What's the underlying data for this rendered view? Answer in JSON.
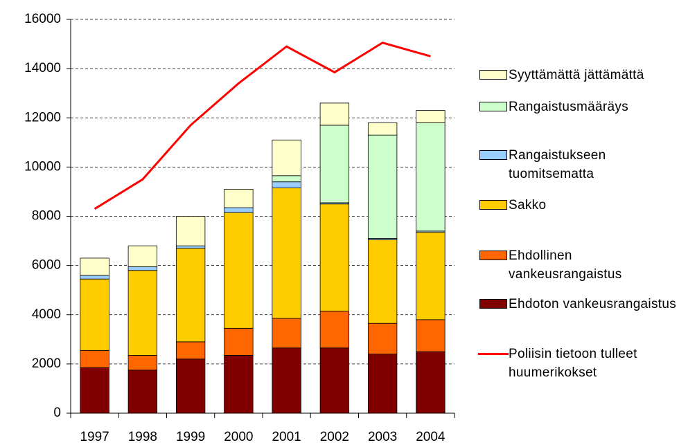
{
  "chart_data": {
    "type": "bar",
    "categories": [
      "1997",
      "1998",
      "1999",
      "2000",
      "2001",
      "2002",
      "2003",
      "2004"
    ],
    "stacked": true,
    "series": [
      {
        "name": "Ehdoton vankeusrangaistus",
        "color": "#800000",
        "values": [
          1850,
          1750,
          2200,
          2350,
          2650,
          2650,
          2400,
          2500
        ]
      },
      {
        "name": "Ehdollinen vankeusrangaistus",
        "color": "#ff6600",
        "values": [
          700,
          600,
          700,
          1100,
          1200,
          1500,
          1250,
          1300
        ]
      },
      {
        "name": "Sakko",
        "color": "#ffcc00",
        "values": [
          2900,
          3450,
          3800,
          4700,
          5300,
          4350,
          3400,
          3550
        ]
      },
      {
        "name": "Rangaistukseen tuomitsematta",
        "color": "#99ccff",
        "values": [
          150,
          150,
          100,
          200,
          250,
          50,
          50,
          50
        ]
      },
      {
        "name": "Rangaistusmääräys",
        "color": "#ccffcc",
        "values": [
          0,
          0,
          0,
          0,
          250,
          3150,
          4200,
          4400
        ]
      },
      {
        "name": "Syyttämättä jättämättä",
        "color": "#ffffcc",
        "values": [
          700,
          850,
          1200,
          750,
          1450,
          900,
          500,
          500
        ]
      },
      {
        "name": "Poliisin tietoon tulleet huumerikokset",
        "color": "#ff0000",
        "type": "line",
        "values": [
          8300,
          9500,
          11700,
          13400,
          14900,
          13850,
          15050,
          14500
        ]
      }
    ],
    "ylim": [
      0,
      16000
    ],
    "yticks": [
      0,
      2000,
      4000,
      6000,
      8000,
      10000,
      12000,
      14000,
      16000
    ],
    "grid": true,
    "legend": "right"
  }
}
